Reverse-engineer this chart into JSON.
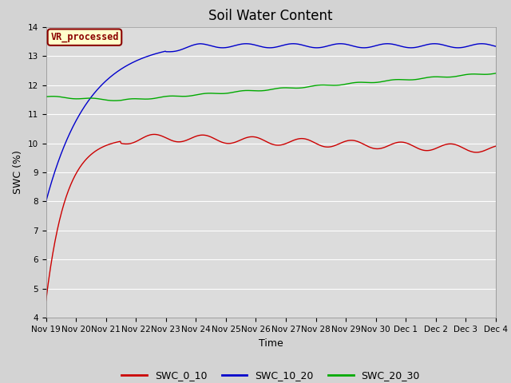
{
  "title": "Soil Water Content",
  "xlabel": "Time",
  "ylabel": "SWC (%)",
  "annotation_label": "VR_processed",
  "annotation_color": "#8B0000",
  "annotation_bg": "#FFFFCC",
  "ylim": [
    4.0,
    14.0
  ],
  "yticks": [
    4.0,
    5.0,
    6.0,
    7.0,
    8.0,
    9.0,
    10.0,
    11.0,
    12.0,
    13.0,
    14.0
  ],
  "xtick_labels": [
    "Nov 19",
    "Nov 20",
    "Nov 21",
    "Nov 22",
    "Nov 23",
    "Nov 24",
    "Nov 25",
    "Nov 26",
    "Nov 27",
    "Nov 28",
    "Nov 29",
    "Nov 30",
    "Dec 1",
    "Dec 2",
    "Dec 3",
    "Dec 4"
  ],
  "line_colors": [
    "#CC0000",
    "#0000CC",
    "#00AA00"
  ],
  "line_labels": [
    "SWC_0_10",
    "SWC_10_20",
    "SWC_20_30"
  ],
  "plot_bg_color": "#DCDCDC",
  "fig_bg_color": "#D3D3D3",
  "grid_color": "#FFFFFF",
  "title_fontsize": 12,
  "label_fontsize": 9,
  "tick_fontsize": 7.5
}
